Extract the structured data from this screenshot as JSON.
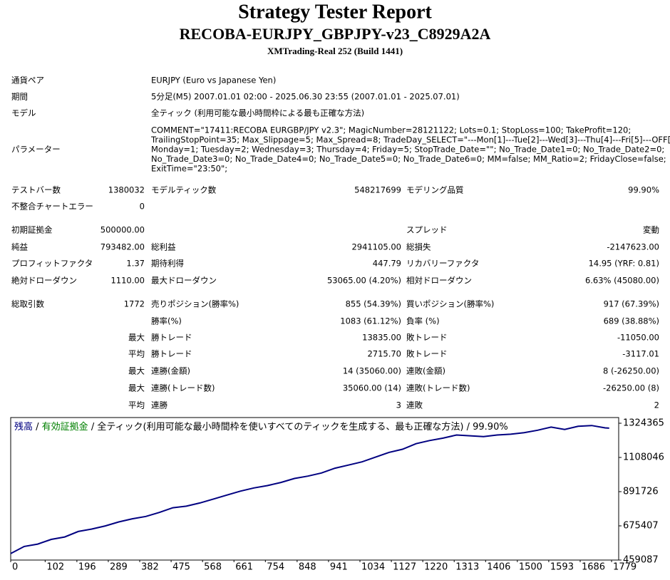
{
  "header": {
    "title": "Strategy Tester Report",
    "subtitle": "RECOBA-EURJPY_GBPJPY-v23_C8929A2A",
    "build": "XMTrading-Real 252 (Build 1441)"
  },
  "info": [
    {
      "label": "通貨ペア",
      "lines": [
        "EURJPY (Euro vs Japanese Yen)"
      ]
    },
    {
      "label": "期間",
      "lines": [
        "5分足(M5) 2007.01.01 02:00 - 2025.06.30 23:55 (2007.01.01 - 2025.07.01)"
      ]
    },
    {
      "label": "モデル",
      "lines": [
        "全ティック (利用可能な最小時間枠による最も正確な方法)"
      ]
    },
    {
      "label": "パラメーター",
      "lines": [
        "COMMENT=\"17411:RECOBA EURGBP/JPY v2.3\"; MagicNumber=28121122; Lots=0.1; StopLoss=100; TakeProfit=120;",
        "TrailingStopPoint=35; Max_Slippage=5; Max_Spread=8; TradeDay_SELECT=\"---Mon[1]---Tue[2]---Wed[3]---Thu[4]---Fri[5]---OFF[0]---\";",
        "Monday=1; Tuesday=2; Wednesday=3; Thursday=4; Friday=5; StopTrade_Date=\"\"; No_Trade_Date1=0; No_Trade_Date2=0;",
        "No_Trade_Date3=0; No_Trade_Date4=0; No_Trade_Date5=0; No_Trade_Date6=0; MM=false; MM_Ratio=2; FridayClose=false;",
        "ExitTime=\"23:50\";"
      ]
    }
  ],
  "stats": [
    [
      "テストバー数",
      "1380032",
      "モデルティック数",
      "548217699",
      "モデリング品質",
      "99.90%"
    ],
    [
      "不整合チャートエラー",
      "0",
      null,
      null,
      null,
      null
    ],
    [
      "初期証拠金",
      "500000.00",
      null,
      null,
      "スプレッド",
      "変動"
    ],
    [
      "純益",
      "793482.00",
      "総利益",
      "2941105.00",
      "総損失",
      "-2147623.00"
    ],
    [
      "プロフィットファクタ",
      "1.37",
      "期待利得",
      "447.79",
      "リカバリーファクタ",
      "14.95 (YRF: 0.81)"
    ],
    [
      "絶対ドローダウン",
      "1110.00",
      "最大ドローダウン",
      "53065.00 (4.20%)",
      "相対ドローダウン",
      "6.63% (45080.00)"
    ],
    [
      "総取引数",
      "1772",
      "売りポジション(勝率%)",
      "855 (54.39%)",
      "買いポジション(勝率%)",
      "917 (67.39%)"
    ],
    [
      null,
      null,
      "勝率(%)",
      "1083 (61.12%)",
      "負率 (%)",
      "689 (38.88%)"
    ],
    [
      null,
      "最大",
      "勝トレード",
      "13835.00",
      "敗トレード",
      "-11050.00"
    ],
    [
      null,
      "平均",
      "勝トレード",
      "2715.70",
      "敗トレード",
      "-3117.01"
    ],
    [
      null,
      "最大",
      "連勝(金額)",
      "14 (35060.00)",
      "連敗(金額)",
      "8 (-26250.00)"
    ],
    [
      null,
      "最大",
      "連勝(トレード数)",
      "35060.00 (14)",
      "連敗(トレード数)",
      "-26250.00 (8)"
    ],
    [
      null,
      "平均",
      "連勝",
      "3",
      "連敗",
      "2"
    ]
  ],
  "chart": {
    "type": "line",
    "series": [
      {
        "name": "残高",
        "color": "#000080",
        "x": [
          0,
          40,
          80,
          120,
          160,
          200,
          240,
          280,
          320,
          360,
          400,
          440,
          480,
          520,
          560,
          600,
          640,
          680,
          720,
          760,
          800,
          840,
          880,
          920,
          960,
          1000,
          1040,
          1080,
          1120,
          1160,
          1200,
          1240,
          1280,
          1320,
          1360,
          1400,
          1440,
          1480,
          1520,
          1560,
          1600,
          1640,
          1680,
          1720,
          1760,
          1772
        ],
        "values": [
          500000,
          545000,
          560000,
          590000,
          605000,
          640000,
          655000,
          675000,
          700000,
          720000,
          735000,
          760000,
          790000,
          800000,
          820000,
          845000,
          870000,
          895000,
          915000,
          930000,
          950000,
          975000,
          990000,
          1010000,
          1040000,
          1060000,
          1080000,
          1110000,
          1140000,
          1160000,
          1195000,
          1215000,
          1230000,
          1250000,
          1245000,
          1240000,
          1250000,
          1255000,
          1265000,
          1280000,
          1300000,
          1285000,
          1305000,
          1310000,
          1295000,
          1293482
        ]
      }
    ],
    "legend_extra": [
      {
        "text": " / ",
        "color": "#000000"
      },
      {
        "text": "有効証拠金",
        "color": "#008000"
      },
      {
        "text": " / 全ティック(利用可能な最小時間枠を使いすべてのティックを生成する、最も正確な方法) / 99.90%",
        "color": "#000000"
      }
    ],
    "xlim": [
      0,
      1800
    ],
    "ylim": [
      459087,
      1324365
    ],
    "xticks": [
      0,
      102,
      196,
      289,
      382,
      475,
      568,
      661,
      754,
      848,
      941,
      1034,
      1127,
      1220,
      1313,
      1406,
      1500,
      1593,
      1686,
      1779
    ],
    "yticks": [
      459087,
      675407,
      891726,
      1108046,
      1324365
    ]
  }
}
